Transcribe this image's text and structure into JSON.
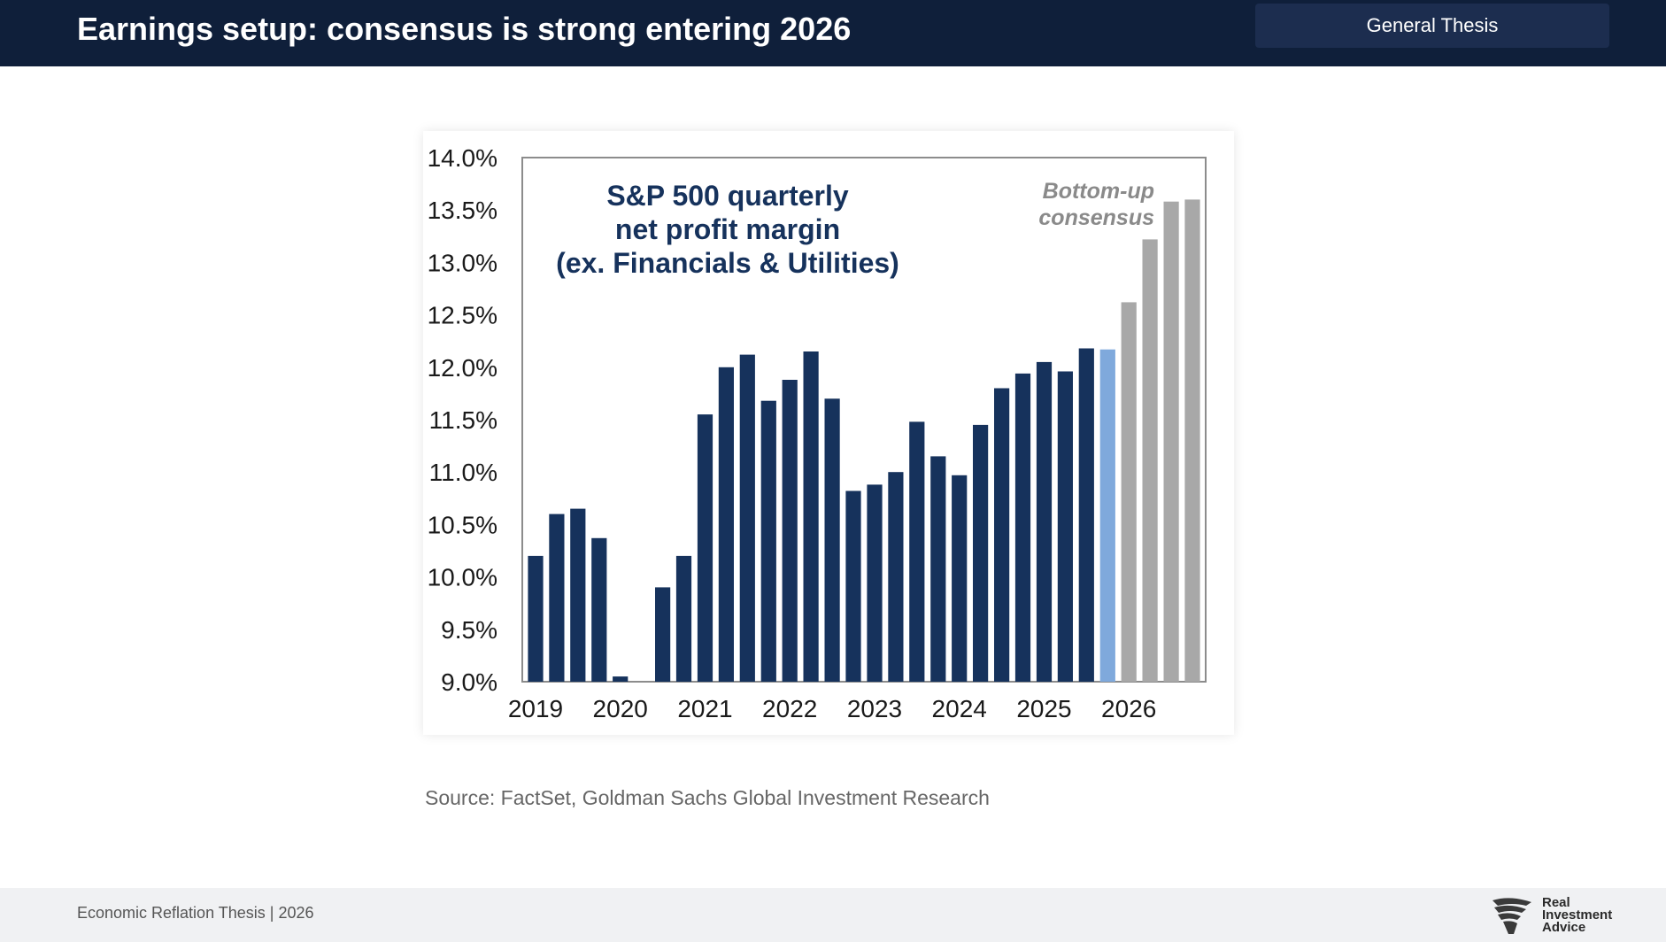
{
  "header": {
    "title": "Earnings setup: consensus is strong entering 2026",
    "tag": "General Thesis"
  },
  "chart_data": {
    "type": "bar",
    "title_lines": [
      "S&P 500 quarterly",
      "net profit margin",
      "(ex. Financials & Utilities)"
    ],
    "annotation_lines": [
      "Bottom-up",
      "consensus"
    ],
    "ylim": [
      9.0,
      14.0
    ],
    "yticks": [
      "14.0%",
      "13.5%",
      "13.0%",
      "12.5%",
      "12.0%",
      "11.5%",
      "11.0%",
      "10.5%",
      "10.0%",
      "9.5%",
      "9.0%"
    ],
    "ytick_values": [
      14.0,
      13.5,
      13.0,
      12.5,
      12.0,
      11.5,
      11.0,
      10.5,
      10.0,
      9.5,
      9.0
    ],
    "xticks": [
      "2019",
      "2020",
      "2021",
      "2022",
      "2023",
      "2024",
      "2025",
      "2026"
    ],
    "grid": false,
    "series": [
      {
        "kind": "actual",
        "color": "#16325c",
        "values": [
          10.2,
          10.6,
          10.65,
          10.37,
          9.05,
          9.0,
          9.9,
          10.2,
          11.55,
          12.0,
          12.12,
          11.68,
          11.88,
          12.15,
          11.7,
          10.82,
          10.88,
          11.0,
          11.48,
          11.15,
          10.97,
          11.45,
          11.8,
          11.94,
          12.05,
          11.96,
          12.18
        ]
      },
      {
        "kind": "latest",
        "color": "#7fa9dc",
        "values": [
          12.17
        ]
      },
      {
        "kind": "consensus",
        "color": "#a8a8a8",
        "values": [
          12.62,
          13.22,
          13.58,
          13.6
        ]
      }
    ]
  },
  "source": "Source: FactSet, Goldman Sachs Global Investment Research",
  "footer": {
    "text": "Economic Reflation Thesis | 2026",
    "logo_lines": [
      "Real",
      "Investment",
      "Advice"
    ]
  }
}
